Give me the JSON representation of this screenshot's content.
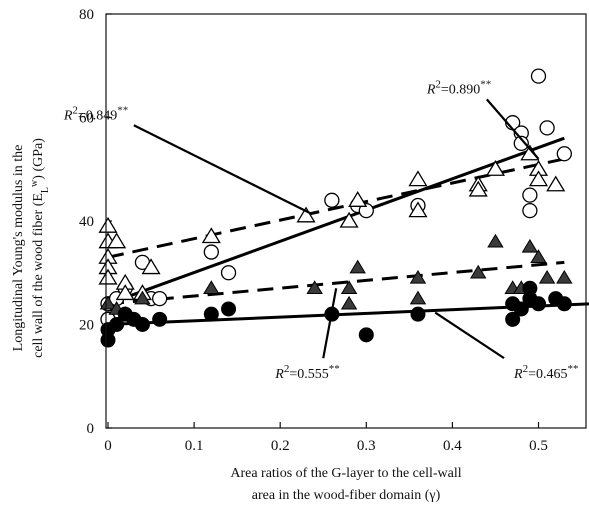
{
  "chart_data": {
    "type": "scatter",
    "xlabel_lines": [
      "Area ratios of the G-layer to the cell-wall",
      "area in the wood-fiber domain (γ)"
    ],
    "ylabel_lines": [
      "Longitudinal Young's modulus in the",
      "cell wall of the wood fiber (E",
      ") (GPa)"
    ],
    "ylabel_sub": "L",
    "ylabel_sup": "w",
    "xlim": [
      0,
      0.56
    ],
    "ylim": [
      0,
      80
    ],
    "x_ticks": [
      0,
      0.1,
      0.2,
      0.3,
      0.4,
      0.5
    ],
    "x_tick_labels": [
      "0",
      "0.1",
      "0.2",
      "0.3",
      "0.4",
      "0.5"
    ],
    "y_ticks": [
      0,
      20,
      40,
      60,
      80
    ],
    "y_tick_labels": [
      "0",
      "20",
      "40",
      "60",
      "80"
    ],
    "series": [
      {
        "marker": "circle-open",
        "points": [
          [
            0.0,
            24
          ],
          [
            0.0,
            21
          ],
          [
            0.01,
            25
          ],
          [
            0.02,
            27
          ],
          [
            0.04,
            32
          ],
          [
            0.05,
            25
          ],
          [
            0.06,
            25
          ],
          [
            0.12,
            34
          ],
          [
            0.14,
            30
          ],
          [
            0.26,
            44
          ],
          [
            0.29,
            43
          ],
          [
            0.3,
            42
          ],
          [
            0.36,
            43
          ],
          [
            0.47,
            59
          ],
          [
            0.48,
            57
          ],
          [
            0.48,
            55
          ],
          [
            0.49,
            45
          ],
          [
            0.49,
            42
          ],
          [
            0.5,
            68
          ],
          [
            0.51,
            58
          ],
          [
            0.53,
            53
          ]
        ],
        "fit": {
          "x": [
            0.0,
            0.53
          ],
          "y": [
            24,
            56
          ],
          "style": "solid"
        }
      },
      {
        "marker": "triangle-open",
        "points": [
          [
            0.0,
            39
          ],
          [
            0.0,
            36
          ],
          [
            0.0,
            33
          ],
          [
            0.0,
            31
          ],
          [
            0.0,
            29
          ],
          [
            0.01,
            36
          ],
          [
            0.02,
            28
          ],
          [
            0.02,
            26
          ],
          [
            0.04,
            26
          ],
          [
            0.05,
            31
          ],
          [
            0.12,
            37
          ],
          [
            0.23,
            41
          ],
          [
            0.28,
            40
          ],
          [
            0.29,
            44
          ],
          [
            0.36,
            48
          ],
          [
            0.36,
            42
          ],
          [
            0.43,
            47
          ],
          [
            0.43,
            46
          ],
          [
            0.45,
            50
          ],
          [
            0.49,
            53
          ],
          [
            0.5,
            50
          ],
          [
            0.5,
            48
          ],
          [
            0.52,
            47
          ]
        ],
        "fit": {
          "x": [
            0.0,
            0.53
          ],
          "y": [
            33,
            52
          ],
          "style": "dashed"
        }
      },
      {
        "marker": "triangle-filled",
        "points": [
          [
            0.0,
            24
          ],
          [
            0.01,
            23
          ],
          [
            0.02,
            22
          ],
          [
            0.04,
            25
          ],
          [
            0.12,
            27
          ],
          [
            0.24,
            27
          ],
          [
            0.28,
            24
          ],
          [
            0.28,
            27
          ],
          [
            0.29,
            31
          ],
          [
            0.36,
            29
          ],
          [
            0.36,
            25
          ],
          [
            0.43,
            30
          ],
          [
            0.45,
            36
          ],
          [
            0.47,
            27
          ],
          [
            0.48,
            27
          ],
          [
            0.49,
            35
          ],
          [
            0.5,
            33
          ],
          [
            0.51,
            29
          ],
          [
            0.53,
            29
          ]
        ],
        "fit": {
          "x": [
            0.0,
            0.53
          ],
          "y": [
            24,
            32
          ],
          "style": "dashed"
        }
      },
      {
        "marker": "circle-filled",
        "points": [
          [
            0.0,
            17
          ],
          [
            0.0,
            19
          ],
          [
            0.01,
            20
          ],
          [
            0.02,
            22
          ],
          [
            0.03,
            21
          ],
          [
            0.04,
            20
          ],
          [
            0.06,
            21
          ],
          [
            0.12,
            22
          ],
          [
            0.14,
            23
          ],
          [
            0.26,
            22
          ],
          [
            0.3,
            18
          ],
          [
            0.36,
            22
          ],
          [
            0.47,
            24
          ],
          [
            0.47,
            21
          ],
          [
            0.48,
            23
          ],
          [
            0.49,
            25
          ],
          [
            0.49,
            27
          ],
          [
            0.5,
            24
          ],
          [
            0.52,
            25
          ],
          [
            0.53,
            24
          ]
        ],
        "fit": {
          "x": [
            0.0,
            0.56
          ],
          "y": [
            20,
            24
          ],
          "style": "solid"
        }
      }
    ],
    "annotations": [
      {
        "italic": "R",
        "sup": "2",
        "rest": "=0.849",
        "stars": "**",
        "from": [
          0.03,
          58.5
        ],
        "to": [
          0.235,
          41.5
        ]
      },
      {
        "italic": "R",
        "sup": "2",
        "rest": "=0.890",
        "stars": "**",
        "from": [
          0.44,
          63.5
        ],
        "to": [
          0.5,
          52
        ]
      },
      {
        "italic": "R",
        "sup": "2",
        "rest": "=0.555",
        "stars": "**",
        "from": [
          0.25,
          13.5
        ],
        "to": [
          0.265,
          27
        ]
      },
      {
        "italic": "R",
        "sup": "2",
        "rest": "=0.465",
        "stars": "**",
        "from": [
          0.46,
          13.5
        ],
        "to": [
          0.38,
          22.3
        ]
      }
    ]
  }
}
